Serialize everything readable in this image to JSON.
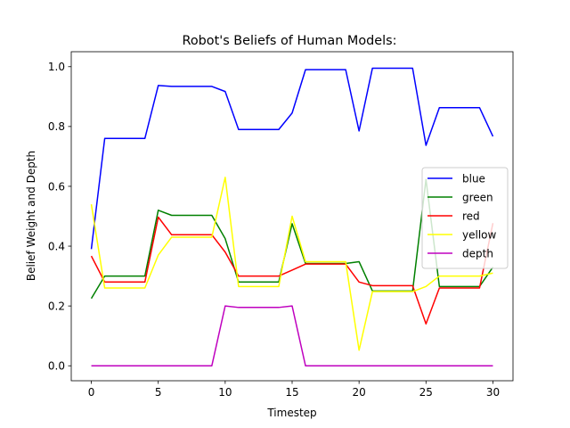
{
  "chart_data": {
    "type": "line",
    "title": "Robot's Beliefs of Human Models:",
    "xlabel": "Timestep",
    "ylabel": "Belief Weight and Depth",
    "xlim": [
      -1.5,
      31.5
    ],
    "ylim": [
      -0.05,
      1.05
    ],
    "xticks": [
      0,
      5,
      10,
      15,
      20,
      25,
      30
    ],
    "xtick_labels": [
      "0",
      "5",
      "10",
      "15",
      "20",
      "25",
      "30"
    ],
    "yticks": [
      0.0,
      0.2,
      0.4,
      0.6,
      0.8,
      1.0
    ],
    "ytick_labels": [
      "0.0",
      "0.2",
      "0.4",
      "0.6",
      "0.8",
      "1.0"
    ],
    "grid": false,
    "legend_position": "center-right",
    "x": [
      0,
      1,
      2,
      3,
      4,
      5,
      6,
      7,
      8,
      9,
      10,
      11,
      12,
      13,
      14,
      15,
      16,
      17,
      18,
      19,
      20,
      21,
      22,
      23,
      24,
      25,
      26,
      27,
      28,
      29,
      30
    ],
    "series": [
      {
        "name": "blue",
        "color": "#0000ff",
        "values": [
          0.39,
          0.76,
          0.76,
          0.76,
          0.76,
          0.937,
          0.934,
          0.934,
          0.934,
          0.934,
          0.917,
          0.79,
          0.79,
          0.79,
          0.79,
          0.845,
          0.99,
          0.99,
          0.99,
          0.99,
          0.785,
          0.995,
          0.995,
          0.995,
          0.995,
          0.737,
          0.863,
          0.863,
          0.863,
          0.863,
          0.767
        ]
      },
      {
        "name": "green",
        "color": "#008000",
        "values": [
          0.225,
          0.3,
          0.3,
          0.3,
          0.3,
          0.52,
          0.503,
          0.503,
          0.503,
          0.503,
          0.425,
          0.28,
          0.28,
          0.28,
          0.28,
          0.475,
          0.342,
          0.342,
          0.342,
          0.342,
          0.348,
          0.25,
          0.25,
          0.25,
          0.25,
          0.623,
          0.265,
          0.265,
          0.265,
          0.265,
          0.33
        ]
      },
      {
        "name": "red",
        "color": "#ff0000",
        "values": [
          0.367,
          0.28,
          0.28,
          0.28,
          0.28,
          0.497,
          0.438,
          0.438,
          0.438,
          0.438,
          0.38,
          0.3,
          0.3,
          0.3,
          0.3,
          0.32,
          0.34,
          0.34,
          0.34,
          0.34,
          0.28,
          0.268,
          0.268,
          0.268,
          0.268,
          0.14,
          0.26,
          0.26,
          0.26,
          0.26,
          0.477
        ]
      },
      {
        "name": "yellow",
        "color": "#ffff00",
        "values": [
          0.54,
          0.26,
          0.26,
          0.26,
          0.26,
          0.37,
          0.43,
          0.43,
          0.43,
          0.43,
          0.63,
          0.265,
          0.265,
          0.265,
          0.265,
          0.5,
          0.348,
          0.348,
          0.348,
          0.348,
          0.052,
          0.248,
          0.248,
          0.248,
          0.248,
          0.265,
          0.3,
          0.3,
          0.3,
          0.3,
          0.31
        ]
      },
      {
        "name": "depth",
        "color": "#bf00bf",
        "values": [
          0,
          0,
          0,
          0,
          0,
          0,
          0,
          0,
          0,
          0,
          0.2,
          0.195,
          0.195,
          0.195,
          0.195,
          0.2,
          0,
          0,
          0,
          0,
          0,
          0,
          0,
          0,
          0,
          0,
          0,
          0,
          0,
          0,
          0
        ]
      }
    ]
  }
}
